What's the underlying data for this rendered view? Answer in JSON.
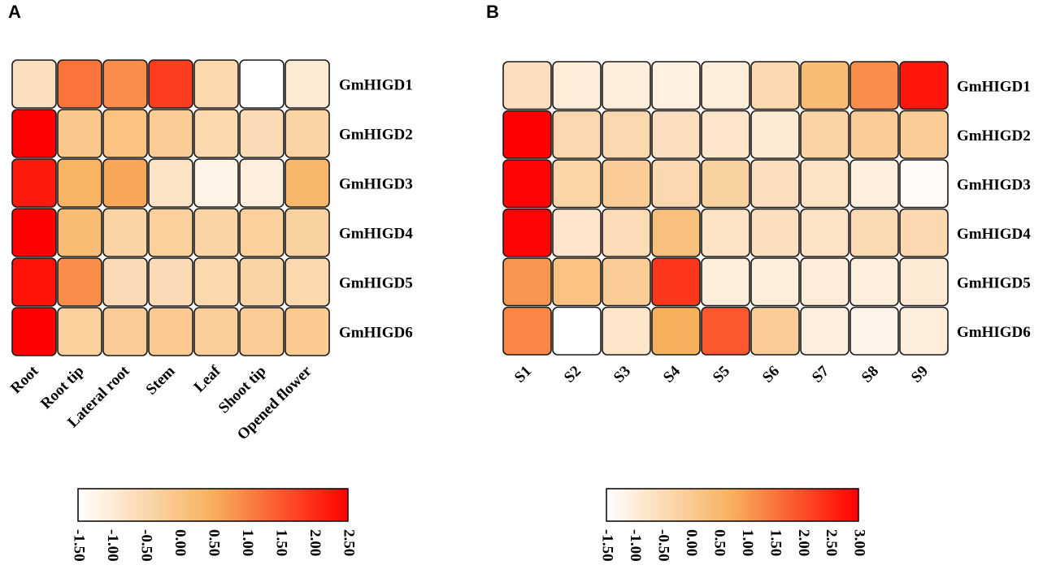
{
  "chart_data": [
    {
      "type": "heatmap",
      "panel": "A",
      "rows": [
        "GmHIGD1",
        "GmHIGD2",
        "GmHIGD3",
        "GmHIGD4",
        "GmHIGD5",
        "GmHIGD6"
      ],
      "columns": [
        "Root",
        "Root tip",
        "Lateral root",
        "Stem",
        "Leaf",
        "Shoot tip",
        "Opened flower"
      ],
      "values": [
        [
          -0.7,
          1.2,
          0.9,
          1.8,
          -0.5,
          -1.5,
          -1.0
        ],
        [
          2.5,
          -0.1,
          0.05,
          -0.2,
          -0.5,
          -0.6,
          -0.4
        ],
        [
          2.2,
          0.4,
          0.6,
          -0.8,
          -1.2,
          -1.1,
          0.3
        ],
        [
          2.5,
          0.2,
          -0.4,
          -0.3,
          -0.4,
          -0.3,
          -0.35
        ],
        [
          2.3,
          0.9,
          -0.6,
          -0.6,
          -0.5,
          -0.4,
          -0.5
        ],
        [
          2.5,
          -0.3,
          -0.2,
          -0.15,
          -0.25,
          -0.2,
          -0.15
        ]
      ],
      "colorbar": {
        "min": -1.5,
        "max": 2.5,
        "ticks": [
          "-1.50",
          "-1.00",
          "-0.50",
          "0.00",
          "0.50",
          "1.00",
          "1.50",
          "2.00",
          "2.50"
        ],
        "colors": [
          "#ffffff",
          "#f7b05c",
          "#ff0000"
        ]
      }
    },
    {
      "type": "heatmap",
      "panel": "B",
      "rows": [
        "GmHIGD1",
        "GmHIGD2",
        "GmHIGD3",
        "GmHIGD4",
        "GmHIGD5",
        "GmHIGD6"
      ],
      "columns": [
        "S1",
        "S2",
        "S3",
        "S4",
        "S5",
        "S6",
        "S7",
        "S8",
        "S9"
      ],
      "values": [
        [
          -0.6,
          -0.95,
          -1.0,
          -1.1,
          -1.0,
          -0.4,
          0.4,
          1.2,
          2.7
        ],
        [
          3.0,
          -0.4,
          -0.4,
          -0.6,
          -0.75,
          -0.9,
          -0.25,
          -0.05,
          -0.05
        ],
        [
          2.95,
          -0.3,
          -0.05,
          -0.4,
          -0.2,
          -0.6,
          -0.7,
          -1.05,
          -1.4
        ],
        [
          2.95,
          -0.8,
          -0.5,
          0.3,
          -0.7,
          -0.6,
          -0.7,
          -0.45,
          -0.4
        ],
        [
          1.1,
          0.25,
          -0.05,
          2.3,
          -1.0,
          -1.0,
          -0.95,
          -1.05,
          -0.9
        ],
        [
          1.3,
          -1.5,
          -0.75,
          0.75,
          1.9,
          -0.05,
          -1.05,
          -1.2,
          -1.0
        ]
      ],
      "colorbar": {
        "min": -1.5,
        "max": 3.0,
        "ticks": [
          "-1.50",
          "-1.00",
          "-0.50",
          "0.00",
          "0.50",
          "1.00",
          "1.50",
          "2.00",
          "2.50",
          "3.00"
        ],
        "colors": [
          "#ffffff",
          "#f7b05c",
          "#ff0000"
        ]
      }
    }
  ]
}
